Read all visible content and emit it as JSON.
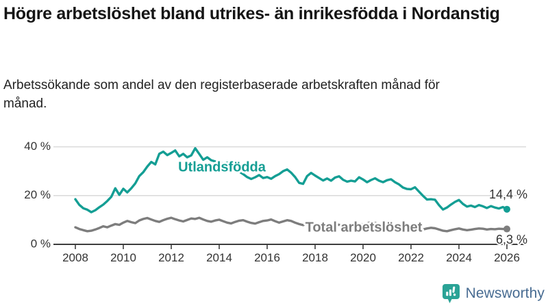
{
  "header": {
    "title": "Högre arbetslöshet bland utrikes- än inrikesfödda i Nordanstig",
    "subtitle": "Arbetssökande som andel av den registerbaserade arbetskraften månad för månad."
  },
  "footer": {
    "brand": "Newsworthy",
    "logo_icon": "newsworthy-chart-bubble-icon",
    "brand_color": "#486c92",
    "icon_color": "#2aa396"
  },
  "chart_data": {
    "type": "line",
    "title": "Högre arbetslöshet bland utrikes- än inrikesfödda i Nordanstig",
    "subtitle": "Arbetssökande som andel av den registerbaserade arbetskraften månad för månad.",
    "xlabel": "",
    "ylabel": "",
    "grid": "horizontal",
    "legend_position": "inline-labels",
    "x_axis": {
      "tick_labels": [
        "2008",
        "2010",
        "2012",
        "2014",
        "2016",
        "2018",
        "2020",
        "2022",
        "2024",
        "2026"
      ],
      "tick_values": [
        2008,
        2010,
        2012,
        2014,
        2016,
        2018,
        2020,
        2022,
        2024,
        2026
      ],
      "range": [
        2007.1,
        2026.8
      ]
    },
    "y_axis": {
      "tick_labels": [
        "0 %",
        "20 %",
        "40 %"
      ],
      "tick_values": [
        0,
        20,
        40
      ],
      "range": [
        0,
        44
      ],
      "unit": "%"
    },
    "x_start": 2008.0,
    "x_step": 0.166667,
    "series": [
      {
        "name": "Utlandsfödda",
        "color": "#149e94",
        "end_label": "14,4 %",
        "end_value": 14.4,
        "values": [
          18.5,
          16.2,
          14.8,
          14.2,
          13.2,
          14.0,
          15.2,
          16.3,
          17.8,
          19.5,
          23.0,
          20.3,
          22.8,
          21.3,
          23.0,
          25.0,
          28.0,
          29.6,
          31.9,
          33.8,
          32.8,
          37.1,
          38.0,
          36.6,
          37.5,
          38.5,
          36.1,
          37.1,
          35.7,
          36.5,
          39.4,
          37.1,
          34.7,
          35.7,
          34.5,
          34.0,
          33.8,
          33.0,
          33.5,
          32.2,
          31.0,
          29.8,
          28.8,
          27.6,
          26.8,
          27.5,
          28.4,
          27.2,
          27.6,
          26.9,
          28.0,
          28.8,
          30.0,
          30.7,
          29.4,
          27.6,
          25.2,
          24.8,
          28.0,
          29.3,
          28.2,
          27.2,
          26.2,
          27.0,
          26.1,
          27.4,
          27.9,
          26.5,
          25.7,
          26.1,
          25.8,
          27.5,
          26.6,
          25.5,
          26.4,
          27.1,
          26.1,
          25.5,
          26.3,
          26.7,
          25.5,
          24.6,
          23.3,
          22.7,
          22.6,
          23.4,
          21.6,
          19.9,
          18.4,
          18.5,
          18.3,
          16.1,
          14.3,
          15.1,
          16.3,
          17.4,
          18.2,
          16.6,
          15.5,
          15.9,
          15.3,
          16.1,
          15.6,
          14.9,
          15.7,
          15.1,
          14.7,
          15.3,
          14.4
        ]
      },
      {
        "name": "Total arbetslöshet",
        "color": "#7d7d7d",
        "end_label": "6,3 %",
        "end_value": 6.3,
        "values": [
          7.0,
          6.3,
          5.8,
          5.4,
          5.6,
          6.1,
          6.7,
          7.4,
          7.0,
          7.7,
          8.3,
          8.0,
          8.9,
          9.6,
          9.1,
          8.7,
          9.8,
          10.4,
          10.8,
          10.2,
          9.6,
          9.2,
          9.9,
          10.5,
          10.9,
          10.3,
          9.8,
          9.4,
          10.0,
          10.6,
          10.4,
          10.9,
          10.2,
          9.6,
          9.3,
          9.8,
          10.1,
          9.5,
          8.9,
          8.6,
          9.2,
          9.7,
          9.9,
          9.3,
          8.8,
          8.5,
          9.1,
          9.6,
          9.8,
          10.2,
          9.5,
          8.9,
          9.4,
          9.9,
          9.6,
          8.9,
          8.3,
          7.9,
          8.5,
          8.9,
          8.6,
          8.0,
          7.5,
          7.3,
          7.8,
          8.2,
          8.0,
          7.6,
          7.3,
          7.7,
          8.1,
          8.4,
          8.2,
          8.6,
          9.1,
          8.8,
          8.4,
          8.1,
          8.4,
          8.0,
          7.6,
          7.3,
          7.0,
          7.4,
          7.2,
          6.8,
          6.4,
          6.1,
          6.5,
          6.8,
          6.6,
          6.1,
          5.6,
          5.4,
          5.8,
          6.2,
          6.5,
          6.1,
          5.8,
          6.0,
          6.3,
          6.5,
          6.4,
          6.1,
          6.3,
          6.2,
          6.4,
          6.3,
          6.3
        ]
      }
    ],
    "colors": {
      "gridline": "#d9d9d9",
      "axis": "#3d3d3d",
      "tick_text": "#333333",
      "end_label_text": "#333333"
    }
  }
}
